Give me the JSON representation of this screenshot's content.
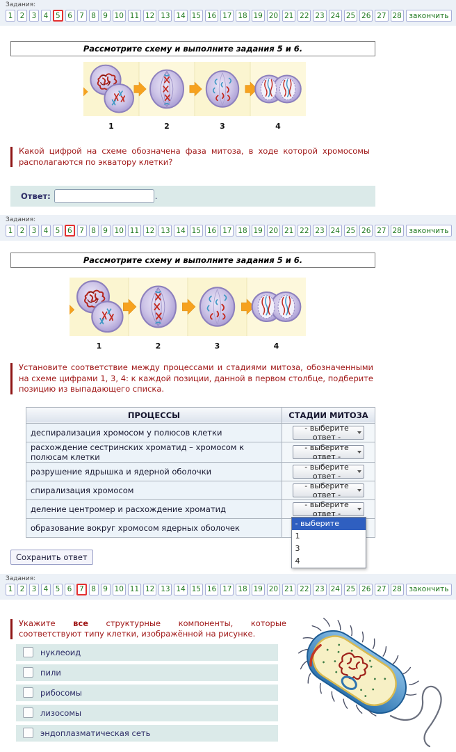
{
  "colors": {
    "active_task_red": "#e43030",
    "task_number_green": "#217a21",
    "question_red": "#a01818",
    "question_bar_red": "#8e1414",
    "row_cyan": "#dbeae9",
    "dropdown_highlight_blue": "#2f5fc0",
    "taskbar_bg": "#ecf1f7"
  },
  "taskbar": {
    "label": "Задания:",
    "numbers": [
      "1",
      "2",
      "3",
      "4",
      "5",
      "6",
      "7",
      "8",
      "9",
      "10",
      "11",
      "12",
      "13",
      "14",
      "15",
      "16",
      "17",
      "18",
      "19",
      "20",
      "21",
      "22",
      "23",
      "24",
      "25",
      "26",
      "27",
      "28"
    ],
    "finish_label": "закончить"
  },
  "taskbars": [
    {
      "active": "5"
    },
    {
      "active": "6"
    },
    {
      "active": "7"
    }
  ],
  "scheme": {
    "header": "Рассмотрите схему и выполните задания 5 и 6.",
    "figure_numbers": [
      "1",
      "2",
      "3",
      "4"
    ]
  },
  "question5": {
    "text": "Какой цифрой на схеме обозначена фаза митоза, в ходе которой хромосомы располагаются по экватору клетки?",
    "answer_label": "Ответ:",
    "answer_value": "",
    "after_input": "."
  },
  "question6": {
    "text": "Установите соответствие между процессами и стадиями митоза, обозначенными на схеме цифрами 1, 3, 4: к каждой позиции, данной в первом столбце, подберите позицию из выпадающего списка.",
    "table": {
      "col1_header": "ПРОЦЕССЫ",
      "col2_header": "СТАДИИ МИТОЗА",
      "rows": [
        "деспирализация хромосом у полюсов клетки",
        "расхождение сестринских хроматид – хромосом к полюсам клетки",
        "разрушение ядрышка и ядерной оболочки",
        "спирализация хромосом",
        "деление центромер и расхождение хроматид",
        "образование вокруг хромосом ядерных оболочек"
      ],
      "select_value": "- выберите ответ -",
      "open_dropdown": {
        "row_index": 4,
        "options": [
          "- выберите ответ -",
          "1",
          "3",
          "4"
        ],
        "selected_option": "- выберите ответ -"
      }
    },
    "save_button": "Сохранить ответ"
  },
  "question7": {
    "text_prefix": "Укажите ",
    "text_bold": "все",
    "text_suffix": " структурные компоненты, которые соответствуют типу клетки, изображённой на рисунке.",
    "options": [
      "нуклеоид",
      "пили",
      "рибосомы",
      "лизосомы",
      "эндоплазматическая сеть"
    ],
    "checked": []
  }
}
